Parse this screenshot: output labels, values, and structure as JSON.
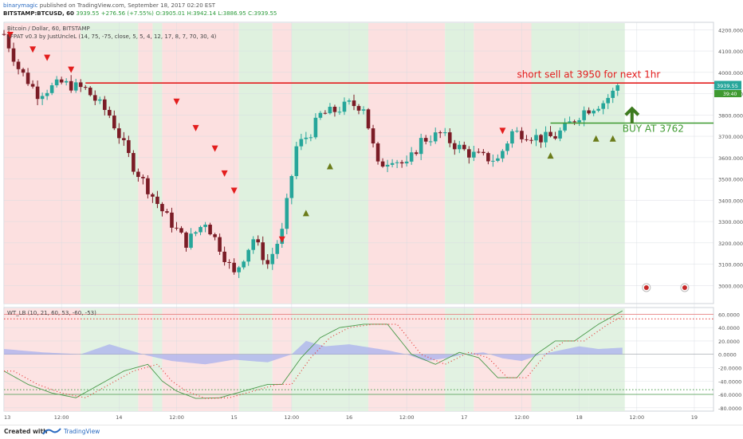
{
  "header": {
    "author": "binarymagic",
    "published_text": "published on TradingView.com, September 18, 2017 02:20 EST",
    "symbol_line": "BITSTAMP:BTCUSD, 60",
    "price": "3939.55",
    "change": "+276.56 (+7.55%)",
    "open": "O:3905.01",
    "high": "H:3942.14",
    "low": "L:3886.95",
    "close": "C:3939.55"
  },
  "footer": {
    "created_with": "Created with",
    "brand": "TradingView"
  },
  "colors": {
    "bull": "#26a69a",
    "bear": "#7b1c26",
    "bull_bg": "#dff1df",
    "bear_bg": "#fce0e0",
    "sell_arrow": "#e31d1d",
    "buy_triangle": "#6b7c1a",
    "wt1": "#4a9a4a",
    "wt2": "#e53935",
    "hist": "#aab0ee",
    "red_line": "#e31d1d",
    "green_line": "#3f9a31"
  },
  "chart_data": {
    "type": "candlestick",
    "title": "Bitcoin / Dollar, 60, BITSTAMP",
    "indicator": "LFPAT v0.3 by JustUncleL (14, 75, -75, close, 5, 5, 4, 12, 17, 8, 7, 70, 30, 4)",
    "y_ticks": [
      3000,
      3100,
      3200,
      3300,
      3400,
      3500,
      3600,
      3700,
      3800,
      3900,
      4000,
      4100,
      4200
    ],
    "y_tick_labels": [
      "3000.000",
      "3100.000",
      "3200.000",
      "3300.000",
      "3400.000",
      "3500.000",
      "3600.000",
      "3700.000",
      "3800.000",
      "3900.000",
      "4000.000",
      "4100.000",
      "4200.000"
    ],
    "ylim": [
      2915,
      4235
    ],
    "x_tick_labels": [
      "13",
      "12:00",
      "14",
      "12:00",
      "15",
      "12:00",
      "16",
      "12:00",
      "17",
      "12:00",
      "18",
      "12:00",
      "19"
    ],
    "x_ticks_hours": [
      0,
      12,
      24,
      36,
      48,
      60,
      72,
      84,
      96,
      108,
      120,
      132,
      144
    ],
    "x_range_hours": [
      0,
      148
    ],
    "last_price_label": "3939.55",
    "secondary_price_label": "39:40",
    "anchors_hours": [
      0,
      3,
      7,
      12,
      17,
      22,
      27,
      33,
      38,
      42,
      45,
      48,
      52,
      55,
      58,
      61,
      64,
      66,
      69,
      72,
      75,
      78,
      81,
      84,
      87,
      91,
      94,
      97,
      100,
      103,
      106,
      109,
      112,
      115,
      118,
      121,
      125,
      128.6
    ],
    "anchors_price": [
      4180,
      4020,
      3900,
      3950,
      3920,
      3800,
      3560,
      3350,
      3200,
      3300,
      3180,
      3050,
      3220,
      3100,
      3250,
      3650,
      3720,
      3800,
      3820,
      3850,
      3840,
      3560,
      3600,
      3560,
      3680,
      3710,
      3660,
      3620,
      3600,
      3590,
      3720,
      3710,
      3690,
      3700,
      3760,
      3820,
      3860,
      3940
    ],
    "background_zones": [
      {
        "from": 0,
        "to": 16,
        "trend": "bear"
      },
      {
        "from": 16,
        "to": 28,
        "trend": "bull"
      },
      {
        "from": 28,
        "to": 31,
        "trend": "bear"
      },
      {
        "from": 31,
        "to": 33,
        "trend": "bull"
      },
      {
        "from": 33,
        "to": 49,
        "trend": "bear"
      },
      {
        "from": 49,
        "to": 56,
        "trend": "bull"
      },
      {
        "from": 56,
        "to": 60,
        "trend": "bear"
      },
      {
        "from": 60,
        "to": 76,
        "trend": "bull"
      },
      {
        "from": 76,
        "to": 92,
        "trend": "bear"
      },
      {
        "from": 92,
        "to": 98,
        "trend": "bull"
      },
      {
        "from": 98,
        "to": 110,
        "trend": "bear"
      },
      {
        "from": 110,
        "to": 122,
        "trend": "bull"
      },
      {
        "from": 122,
        "to": 129.5,
        "trend": "bull"
      }
    ],
    "sell_signals": [
      {
        "hour": 1.3,
        "price": 4175
      },
      {
        "hour": 6,
        "price": 4107
      },
      {
        "hour": 9,
        "price": 4068
      },
      {
        "hour": 14,
        "price": 4012
      },
      {
        "hour": 36,
        "price": 3862
      },
      {
        "hour": 40,
        "price": 3738
      },
      {
        "hour": 44,
        "price": 3642
      },
      {
        "hour": 46,
        "price": 3525
      },
      {
        "hour": 48,
        "price": 3444
      },
      {
        "hour": 58,
        "price": 3215
      },
      {
        "hour": 104,
        "price": 3725
      }
    ],
    "buy_signals": [
      {
        "hour": 63,
        "price": 3340
      },
      {
        "hour": 68,
        "price": 3560
      },
      {
        "hour": 114,
        "price": 3610
      },
      {
        "hour": 123.5,
        "price": 3690
      },
      {
        "hour": 127,
        "price": 3690
      }
    ],
    "lines": [
      {
        "name": "short",
        "price": 3950,
        "from_hour": 17,
        "to_hour": 150
      },
      {
        "name": "buy",
        "price": 3762,
        "from_hour": 114,
        "to_hour": 148
      }
    ],
    "annotations": [
      {
        "text": "short sell at 3950 for next 1hr",
        "hour": 107,
        "price": 3975
      },
      {
        "text": "BUY AT 3762",
        "hour": 129,
        "price": 3720
      }
    ],
    "buy_arrow": {
      "hour": 131,
      "price_tip": 3830,
      "price_base": 3760
    },
    "oscillator": {
      "label": "WT_LB (10, 21, 60, 53, -60, -53)",
      "ylim": [
        -85,
        70
      ],
      "y_ticks": [
        60,
        40,
        20,
        0,
        -20,
        -40,
        -60,
        -80
      ],
      "y_tick_labels": [
        "60.0000",
        "40.0000",
        "20.0000",
        "0.0000",
        "-20.0000",
        "-40.0000",
        "-60.0000",
        "-80.0000"
      ],
      "levels_solid": [
        60,
        -60
      ],
      "levels_dotted": [
        53,
        -53
      ],
      "wt1_anchors_hours": [
        0,
        5,
        10,
        15,
        20,
        25,
        30,
        33,
        36,
        40,
        45,
        50,
        55,
        58,
        62,
        66,
        70,
        75,
        80,
        85,
        90,
        95,
        99,
        103,
        107,
        111,
        115,
        119,
        124,
        129
      ],
      "wt1_anchors_values": [
        -25,
        -45,
        -58,
        -65,
        -45,
        -25,
        -15,
        -40,
        -55,
        -66,
        -65,
        -55,
        -45,
        -45,
        -5,
        25,
        40,
        45,
        45,
        0,
        -15,
        3,
        -5,
        -35,
        -35,
        0,
        20,
        20,
        45,
        65
      ],
      "hist_anchors_hours": [
        0,
        8,
        16,
        22,
        30,
        35,
        42,
        48,
        55,
        60,
        63,
        67,
        72,
        80,
        84,
        88,
        92,
        96,
        100,
        104,
        108,
        112,
        116,
        120,
        124,
        129
      ],
      "hist_anchors_values": [
        8,
        3,
        0,
        15,
        -2,
        -10,
        -15,
        -8,
        -12,
        0,
        20,
        12,
        15,
        6,
        0,
        -10,
        -6,
        0,
        3,
        -6,
        -10,
        0,
        6,
        12,
        8,
        10
      ]
    },
    "oscillator_x_tick_labels": [
      "13",
      "12:00",
      "14",
      "12:00",
      "15",
      "12:00",
      "16",
      "12:00",
      "17",
      "12:00",
      "18",
      "12:00",
      "19"
    ]
  }
}
